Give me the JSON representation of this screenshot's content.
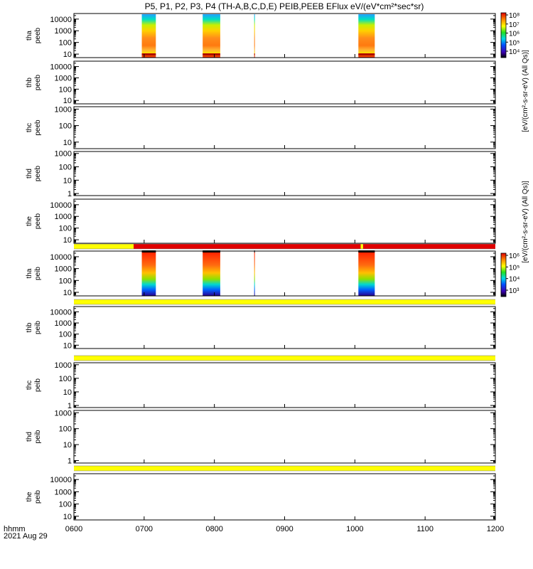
{
  "title": "P5, P1, P2, P3, P4 (TH-A,B,C,D,E) PEIB,PEEB EFlux eV/(eV*cm²*sec*sr)",
  "time_axis": {
    "label_line1": "hhmm",
    "label_line2": "2021 Aug 29",
    "ticks": [
      "0600",
      "0700",
      "0800",
      "0900",
      "1000",
      "1100",
      "1200"
    ]
  },
  "colorbars": [
    {
      "label": "[eV/(cm²-s-sr-eV) (All Qs)]",
      "ticks": [
        "10⁸",
        "10⁷",
        "10⁶",
        "10⁵",
        "10⁴"
      ]
    },
    {
      "label": "[eV/(cm²-s-sr-eV) (All Qs)]",
      "ticks": [
        "10⁶",
        "10⁵",
        "10⁴",
        "10³"
      ]
    }
  ],
  "chart_data": [
    {
      "type": "heatmap",
      "probe": "tha",
      "product": "peeb",
      "ylabel_line1": "tha",
      "ylabel_line2": "peeb",
      "yscale": "log",
      "yticks": [
        "10000",
        "1000",
        "100",
        "10"
      ],
      "ylim": [
        5,
        30000
      ],
      "segments": [
        {
          "start": "0658",
          "end": "0710"
        },
        {
          "start": "0750",
          "end": "0805"
        },
        {
          "start": "0794",
          "end": "0817"
        },
        {
          "start": "1003",
          "end": "1017"
        }
      ]
    },
    {
      "type": "heatmap",
      "probe": "thb",
      "product": "peeb",
      "ylabel_line1": "thb",
      "ylabel_line2": "peeb",
      "yscale": "log",
      "yticks": [
        "10000",
        "1000",
        "100",
        "10"
      ],
      "ylim": [
        5,
        30000
      ],
      "segments": []
    },
    {
      "type": "heatmap",
      "probe": "thc",
      "product": "peeb",
      "ylabel_line1": "thc",
      "ylabel_line2": "peeb",
      "yscale": "log",
      "yticks": [
        "1000",
        "100",
        "10"
      ],
      "ylim": [
        4,
        1400
      ],
      "segments": []
    },
    {
      "type": "heatmap",
      "probe": "thd",
      "product": "peeb",
      "ylabel_line1": "thd",
      "ylabel_line2": "peeb",
      "yscale": "log",
      "yticks": [
        "1000",
        "100",
        "10",
        "1"
      ],
      "ylim": [
        0.7,
        1400
      ],
      "segments": []
    },
    {
      "type": "heatmap",
      "probe": "the",
      "product": "peeb",
      "ylabel_line1": "the",
      "ylabel_line2": "peeb",
      "yscale": "log",
      "yticks": [
        "10000",
        "1000",
        "100",
        "10"
      ],
      "ylim": [
        5,
        30000
      ],
      "segments": []
    },
    {
      "type": "heatmap",
      "probe": "tha",
      "product": "peib",
      "ylabel_line1": "tha",
      "ylabel_line2": "peib",
      "yscale": "log",
      "yticks": [
        "10000",
        "1000",
        "100",
        "10"
      ],
      "ylim": [
        5,
        30000
      ],
      "segments": [
        {
          "start": "0658",
          "end": "0710"
        },
        {
          "start": "0750",
          "end": "0805"
        },
        {
          "start": "0794",
          "end": "0817"
        },
        {
          "start": "1003",
          "end": "1017"
        }
      ]
    },
    {
      "type": "heatmap",
      "probe": "thb",
      "product": "peib",
      "ylabel_line1": "thb",
      "ylabel_line2": "peib",
      "yscale": "log",
      "yticks": [
        "10000",
        "1000",
        "100",
        "10"
      ],
      "ylim": [
        5,
        30000
      ],
      "segments": []
    },
    {
      "type": "heatmap",
      "probe": "thc",
      "product": "peib",
      "ylabel_line1": "thc",
      "ylabel_line2": "peib",
      "yscale": "log",
      "yticks": [
        "1000",
        "100",
        "10",
        "1"
      ],
      "ylim": [
        0.7,
        1400
      ],
      "segments": []
    },
    {
      "type": "heatmap",
      "probe": "thd",
      "product": "peib",
      "ylabel_line1": "thd",
      "ylabel_line2": "peib",
      "yscale": "log",
      "yticks": [
        "1000",
        "100",
        "10",
        "1"
      ],
      "ylim": [
        0.7,
        1400
      ],
      "segments": []
    },
    {
      "type": "heatmap",
      "probe": "the",
      "product": "peib",
      "ylabel_line1": "the",
      "ylabel_line2": "peib",
      "yscale": "log",
      "yticks": [
        "10000",
        "1000",
        "100",
        "10"
      ],
      "ylim": [
        5,
        30000
      ],
      "segments": []
    }
  ]
}
